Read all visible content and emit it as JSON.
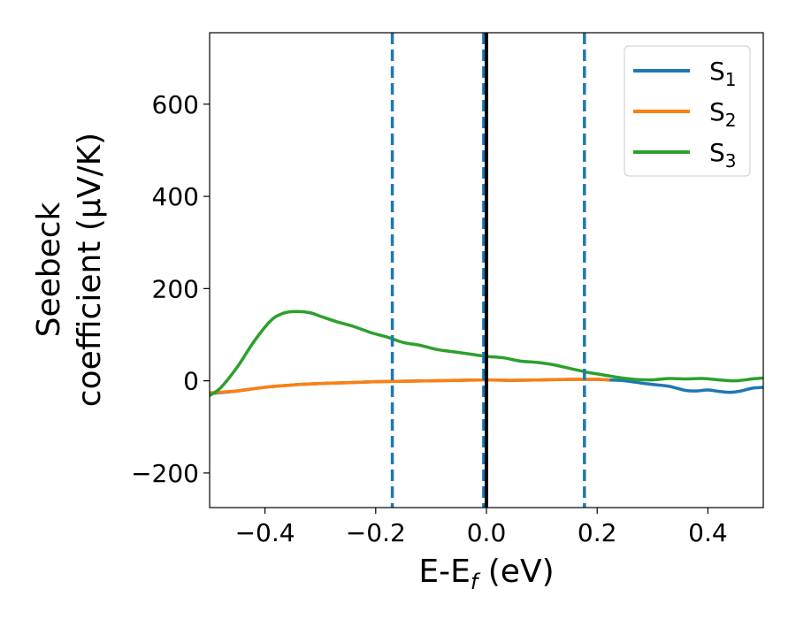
{
  "chart_data": {
    "type": "line",
    "title": "",
    "xlabel": {
      "base": "E-E",
      "sub": "f",
      "tail": " (eV)"
    },
    "ylabel": {
      "line1": "Seebeck",
      "line2": "coefficient  (μV/K)"
    },
    "xlim": [
      -0.5,
      0.5
    ],
    "ylim": [
      -275,
      755
    ],
    "xticks": [
      -0.4,
      -0.2,
      0.0,
      0.2,
      0.4
    ],
    "xtick_labels": [
      "−0.4",
      "−0.2",
      "0.0",
      "0.2",
      "0.4"
    ],
    "yticks": [
      -200,
      0,
      200,
      400,
      600
    ],
    "ytick_labels": [
      "−200",
      "0",
      "200",
      "400",
      "600"
    ],
    "grid": false,
    "legend_position": "top-right",
    "colors": {
      "S1": "#1f77b4",
      "S2": "#ff7f0e",
      "S3": "#2ca02c",
      "vline_solid": "#000000",
      "vline_dashed": "#1f77b4"
    },
    "vertical_lines": [
      {
        "x": -0.17,
        "style": "dashed",
        "color": "#1f77b4"
      },
      {
        "x": -0.005,
        "style": "dashed",
        "color": "#1f77b4"
      },
      {
        "x": 0.0,
        "style": "solid",
        "color": "#000000"
      },
      {
        "x": 0.177,
        "style": "dashed",
        "color": "#1f77b4"
      }
    ],
    "series": [
      {
        "name": "S1",
        "name_base": "S",
        "name_sub": "1",
        "color": "#1f77b4",
        "points": [
          [
            -0.5,
            -28
          ],
          [
            -0.45,
            -22
          ],
          [
            -0.4,
            -14
          ],
          [
            -0.35,
            -9
          ],
          [
            -0.3,
            -6
          ],
          [
            -0.25,
            -4
          ],
          [
            -0.2,
            -2
          ],
          [
            -0.15,
            -1
          ],
          [
            -0.1,
            0
          ],
          [
            -0.05,
            1
          ],
          [
            0.0,
            2
          ],
          [
            0.05,
            1
          ],
          [
            0.1,
            2
          ],
          [
            0.15,
            3
          ],
          [
            0.2,
            3
          ],
          [
            0.22,
            2
          ],
          [
            0.25,
            0
          ],
          [
            0.28,
            -5
          ],
          [
            0.3,
            -8
          ],
          [
            0.33,
            -12
          ],
          [
            0.36,
            -21
          ],
          [
            0.38,
            -22
          ],
          [
            0.4,
            -20
          ],
          [
            0.42,
            -23
          ],
          [
            0.44,
            -25
          ],
          [
            0.46,
            -22
          ],
          [
            0.48,
            -16
          ],
          [
            0.5,
            -14
          ]
        ]
      },
      {
        "name": "S2",
        "name_base": "S",
        "name_sub": "2",
        "color": "#ff7f0e",
        "points": [
          [
            -0.5,
            -26
          ],
          [
            -0.45,
            -22
          ],
          [
            -0.4,
            -14
          ],
          [
            -0.35,
            -9
          ],
          [
            -0.3,
            -6
          ],
          [
            -0.25,
            -4
          ],
          [
            -0.2,
            -2
          ],
          [
            -0.15,
            -1
          ],
          [
            -0.1,
            0
          ],
          [
            -0.05,
            1
          ],
          [
            0.0,
            2
          ],
          [
            0.05,
            1
          ],
          [
            0.1,
            2
          ],
          [
            0.15,
            3
          ],
          [
            0.2,
            3
          ],
          [
            0.22,
            2
          ]
        ]
      },
      {
        "name": "S3",
        "name_base": "S",
        "name_sub": "3",
        "color": "#2ca02c",
        "points": [
          [
            -0.5,
            -32
          ],
          [
            -0.48,
            -15
          ],
          [
            -0.45,
            30
          ],
          [
            -0.42,
            85
          ],
          [
            -0.39,
            130
          ],
          [
            -0.37,
            145
          ],
          [
            -0.35,
            150
          ],
          [
            -0.32,
            148
          ],
          [
            -0.3,
            140
          ],
          [
            -0.27,
            128
          ],
          [
            -0.24,
            118
          ],
          [
            -0.21,
            105
          ],
          [
            -0.18,
            95
          ],
          [
            -0.15,
            83
          ],
          [
            -0.12,
            77
          ],
          [
            -0.09,
            68
          ],
          [
            -0.06,
            63
          ],
          [
            -0.03,
            58
          ],
          [
            0.0,
            53
          ],
          [
            0.03,
            50
          ],
          [
            0.06,
            43
          ],
          [
            0.09,
            40
          ],
          [
            0.12,
            35
          ],
          [
            0.15,
            27
          ],
          [
            0.18,
            19
          ],
          [
            0.21,
            13
          ],
          [
            0.24,
            7
          ],
          [
            0.27,
            3
          ],
          [
            0.3,
            2
          ],
          [
            0.33,
            5
          ],
          [
            0.36,
            4
          ],
          [
            0.39,
            5
          ],
          [
            0.42,
            2
          ],
          [
            0.45,
            0
          ],
          [
            0.48,
            4
          ],
          [
            0.5,
            6
          ]
        ]
      }
    ]
  }
}
